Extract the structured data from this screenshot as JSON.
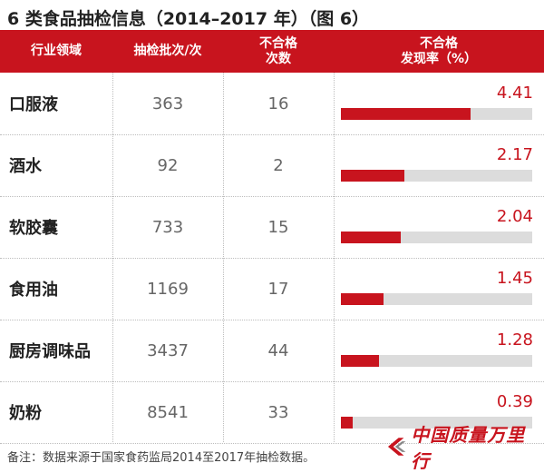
{
  "chart_data": {
    "type": "table",
    "title": "6 类食品抽检信息（2014–2017 年）（图 6）",
    "columns": [
      "行业领域",
      "抽检批次/次",
      "不合格次数",
      "不合格发现率（%）"
    ],
    "header_lines": {
      "failed_count": [
        "不合格",
        "次数"
      ],
      "failure_rate": [
        "不合格",
        "发现率（%）"
      ]
    },
    "categories": [
      "口服液",
      "酒水",
      "软胶囊",
      "食用油",
      "厨房调味品",
      "奶粉"
    ],
    "series": [
      {
        "name": "抽检批次/次",
        "values": [
          363,
          92,
          733,
          1169,
          3437,
          8541
        ]
      },
      {
        "name": "不合格次数",
        "values": [
          16,
          2,
          15,
          17,
          44,
          33
        ]
      },
      {
        "name": "不合格发现率（%）",
        "values": [
          4.41,
          2.17,
          2.04,
          1.45,
          1.28,
          0.39
        ]
      }
    ],
    "rate_scale_max": 6.5,
    "colors": {
      "accent": "#c8141e",
      "track": "#dcdcdc"
    }
  },
  "footnote": "备注：数据来源于国家食药监局2014至2017年抽检数据。",
  "brand": "中国质量万里行"
}
